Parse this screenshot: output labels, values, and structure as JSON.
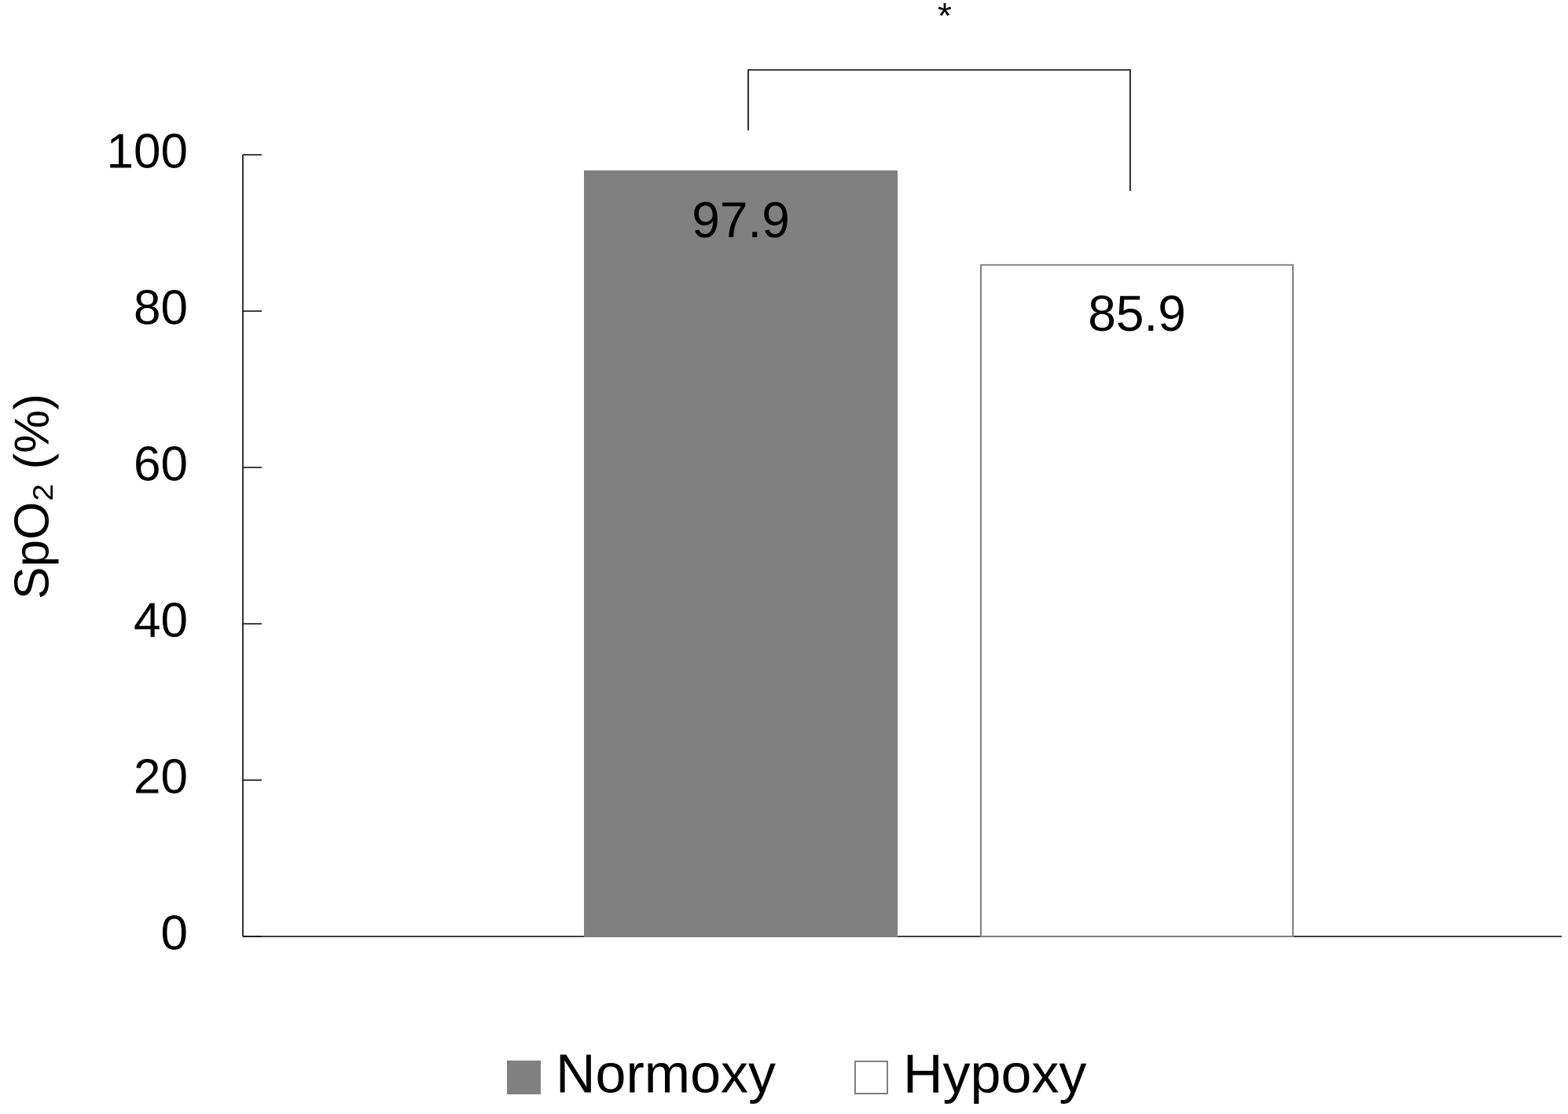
{
  "chart_data": {
    "type": "bar",
    "ylabel": "SpO₂ (%)",
    "annotation": "*",
    "categories": [
      null
    ],
    "series": [
      {
        "name": "Normoxy",
        "color": "#808080",
        "values": [
          97.9
        ]
      },
      {
        "name": "Hypoxy",
        "color": "#ffffff",
        "values": [
          85.9
        ]
      }
    ],
    "ylim": [
      0,
      100
    ],
    "yticks": [
      0,
      20,
      40,
      60,
      80,
      100
    ],
    "grid": false,
    "legend": "bottom"
  }
}
